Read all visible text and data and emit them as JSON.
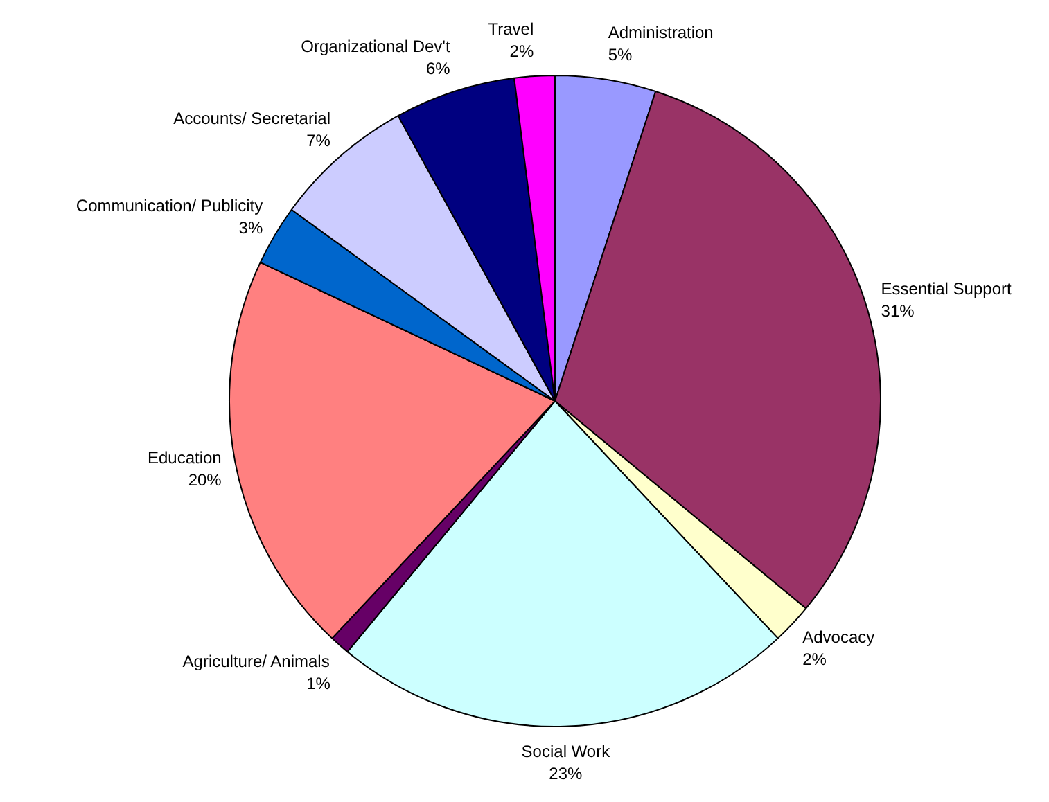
{
  "chart_data": {
    "type": "pie",
    "categories": [
      "Administration",
      "Essential Support",
      "Advocacy",
      "Social Work",
      "Agriculture/ Animals",
      "Education",
      "Communication/ Publicity",
      "Accounts/ Secretarial",
      "Organizational Dev't",
      "Travel"
    ],
    "values": [
      5,
      31,
      2,
      23,
      1,
      20,
      3,
      7,
      6,
      2
    ],
    "value_labels": [
      "5%",
      "31%",
      "2%",
      "23%",
      "1%",
      "20%",
      "3%",
      "7%",
      "6%",
      "2%"
    ],
    "colors": [
      "#9999ff",
      "#993366",
      "#ffffcc",
      "#ccffff",
      "#660066",
      "#ff8080",
      "#0066cc",
      "#ccccff",
      "#000080",
      "#ff00ff"
    ]
  }
}
